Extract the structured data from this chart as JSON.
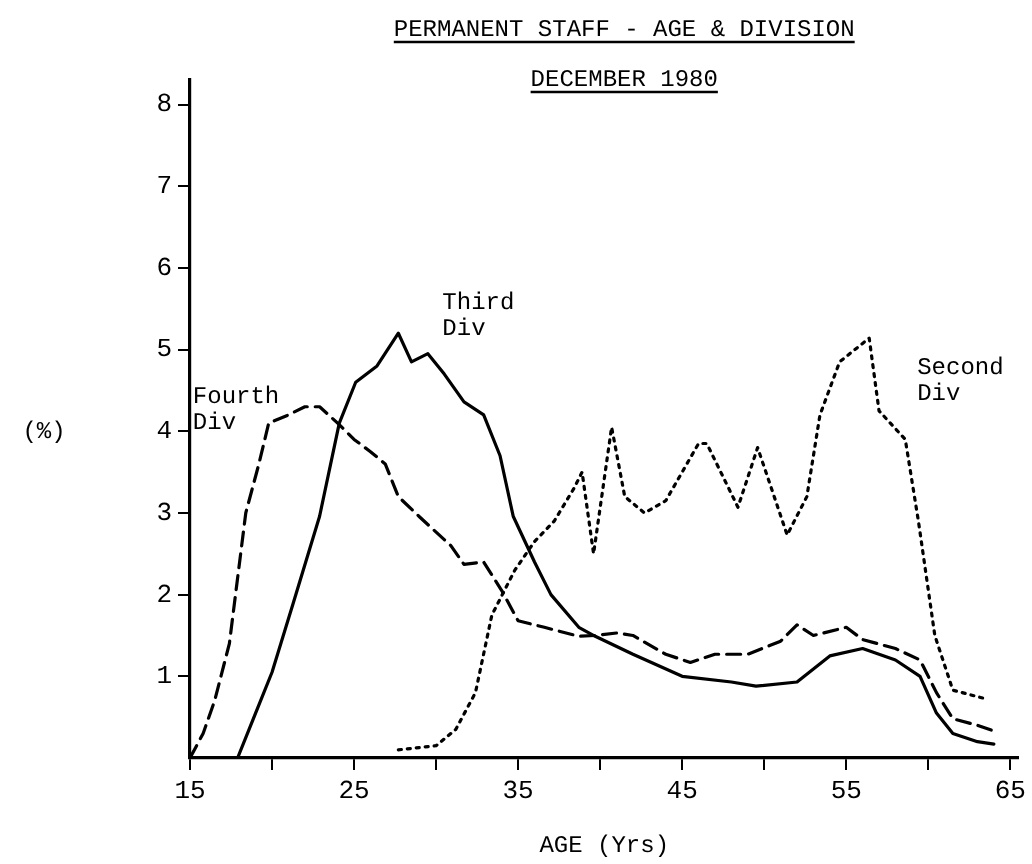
{
  "chart_data": {
    "type": "line",
    "title": "PERMANENT STAFF - AGE & DIVISION",
    "subtitle": "DECEMBER 1980",
    "xlabel": "AGE (Yrs)",
    "ylabel": "(%)",
    "xlim": [
      15,
      65.5
    ],
    "ylim": [
      0,
      8.3
    ],
    "xticks": [
      15,
      {
        "value": 20,
        "label": null
      },
      25,
      {
        "value": 30,
        "label": null
      },
      35,
      {
        "value": 40,
        "label": null
      },
      45,
      {
        "value": 50,
        "label": null
      },
      55,
      {
        "value": 60,
        "label": null
      },
      65
    ],
    "yticks": [
      1,
      2,
      3,
      4,
      5,
      6,
      7,
      8
    ],
    "grid": false,
    "legend": false,
    "marker": "none",
    "series": [
      {
        "name": "Fourth Div",
        "color": "#000000",
        "line_style": "dashed",
        "x": [
          15,
          15.8,
          16.5,
          17.4,
          18.4,
          19.2,
          19.8,
          21,
          22,
          22.9,
          24,
          25,
          26,
          26.9,
          27.7,
          29,
          30.9,
          31.7,
          32.9,
          34,
          35,
          36.6,
          38.7,
          39.7,
          41,
          42,
          44,
          45.5,
          47,
          49,
          51,
          52,
          53,
          55,
          56,
          58,
          59.5,
          60.5,
          61.5,
          63,
          64
        ],
        "values": [
          0,
          0.3,
          0.7,
          1.4,
          3.0,
          3.6,
          4.1,
          4.2,
          4.3,
          4.3,
          4.1,
          3.9,
          3.75,
          3.6,
          3.2,
          2.95,
          2.6,
          2.37,
          2.4,
          2.05,
          1.68,
          1.6,
          1.49,
          1.5,
          1.53,
          1.5,
          1.27,
          1.17,
          1.27,
          1.27,
          1.43,
          1.63,
          1.5,
          1.6,
          1.45,
          1.34,
          1.2,
          0.8,
          0.48,
          0.4,
          0.33
        ]
      },
      {
        "name": "Third Div",
        "color": "#000000",
        "line_style": "solid",
        "x": [
          17.9,
          20,
          21.3,
          22.9,
          24.1,
          25.1,
          26.4,
          27.7,
          28.5,
          29.5,
          30.5,
          31.7,
          32.9,
          33.9,
          34.7,
          36,
          37,
          38.7,
          39.7,
          42,
          45,
          48,
          49.5,
          52,
          54,
          56,
          58,
          59.5,
          60.5,
          61.5,
          63,
          64
        ],
        "values": [
          0,
          1.05,
          1.9,
          2.96,
          4.1,
          4.6,
          4.8,
          5.2,
          4.85,
          4.95,
          4.7,
          4.36,
          4.2,
          3.7,
          2.96,
          2.4,
          2.0,
          1.6,
          1.49,
          1.27,
          1.0,
          0.93,
          0.88,
          0.93,
          1.25,
          1.34,
          1.2,
          1.0,
          0.55,
          0.3,
          0.2,
          0.17
        ]
      },
      {
        "name": "Second Div",
        "color": "#000000",
        "line_style": "dotted",
        "x": [
          27.7,
          30,
          31.2,
          32.4,
          33.4,
          34.8,
          36,
          37.2,
          38.4,
          38.9,
          39.6,
          40.7,
          41.5,
          42.7,
          44,
          46,
          46.5,
          48.4,
          49.6,
          51.4,
          52.6,
          53.4,
          54.6,
          56.4,
          57,
          58.6,
          59.4,
          60.4,
          61.5,
          63.4
        ],
        "values": [
          0.1,
          0.15,
          0.35,
          0.8,
          1.75,
          2.3,
          2.65,
          2.9,
          3.3,
          3.5,
          2.5,
          4.05,
          3.2,
          3.0,
          3.15,
          3.85,
          3.85,
          3.07,
          3.8,
          2.73,
          3.2,
          4.2,
          4.85,
          5.14,
          4.25,
          3.9,
          2.9,
          1.5,
          0.83,
          0.73
        ]
      }
    ]
  }
}
